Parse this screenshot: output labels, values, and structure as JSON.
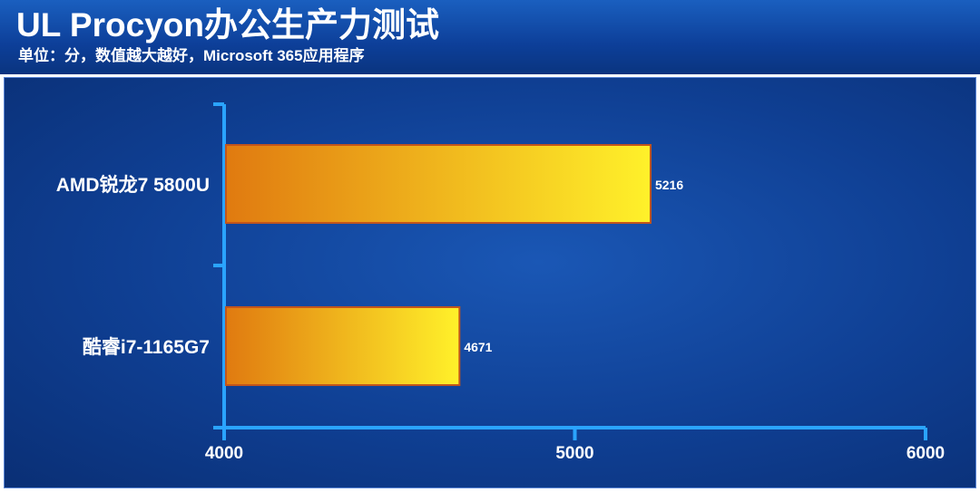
{
  "header": {
    "title": "UL Procyon办公生产力测试",
    "subtitle": "单位：分，数值越大越好，Microsoft 365应用程序"
  },
  "colors": {
    "header_blue": "#0d3f99",
    "plot_blue": "#0f3f93",
    "bar_dark": "#e07a10",
    "bar_light": "#fff12a",
    "axis": "#2aa4ff"
  },
  "chart_data": {
    "type": "bar",
    "orientation": "horizontal",
    "categories": [
      "AMD锐龙7 5800U",
      "酷睿i7-1165G7"
    ],
    "values": [
      5216,
      4671
    ],
    "title": "UL Procyon办公生产力测试",
    "subtitle": "单位：分，数值越大越好，Microsoft 365应用程序",
    "xlabel": "",
    "ylabel": "",
    "xlim": [
      4000,
      6000
    ],
    "xticks": [
      4000,
      5000,
      6000
    ],
    "grid": false,
    "legend": "none"
  }
}
